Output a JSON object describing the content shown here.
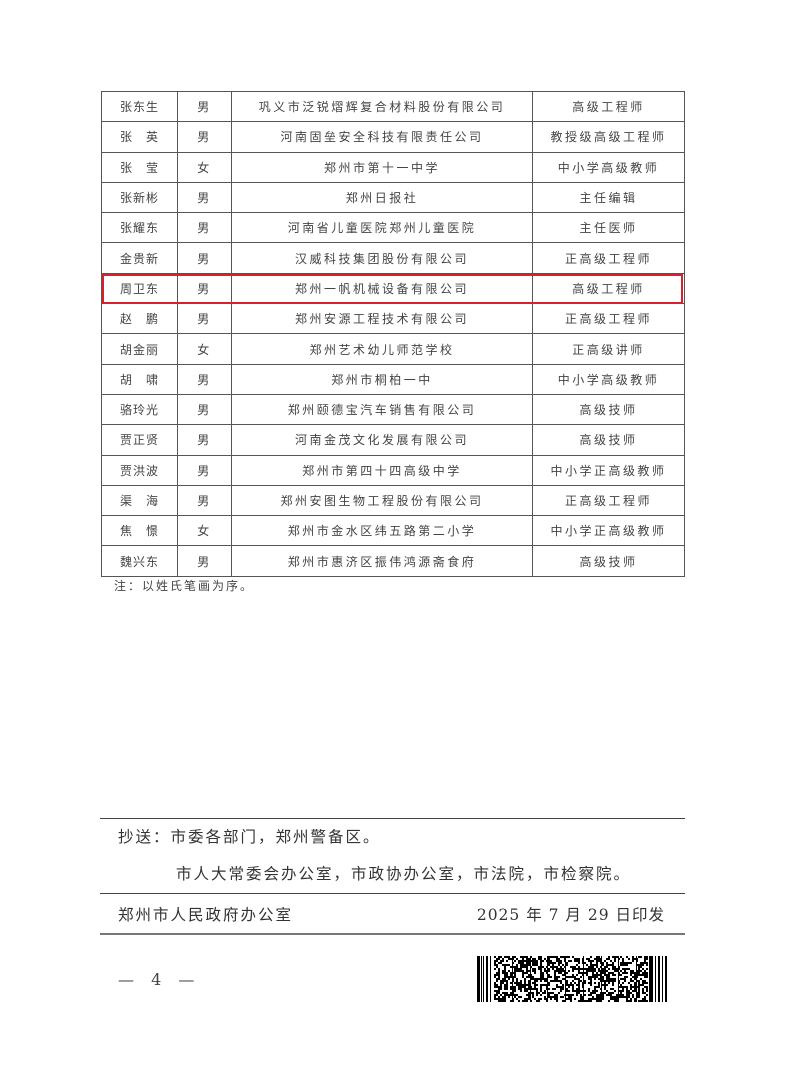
{
  "table": {
    "rows": [
      {
        "name": "张东生",
        "gender": "男",
        "org": "巩义市泛锐熠辉复合材料股份有限公司",
        "title": "高级工程师"
      },
      {
        "name": "张　英",
        "gender": "男",
        "org": "河南固垒安全科技有限责任公司",
        "title": "教授级高级工程师"
      },
      {
        "name": "张　莹",
        "gender": "女",
        "org": "郑州市第十一中学",
        "title": "中小学高级教师"
      },
      {
        "name": "张新彬",
        "gender": "男",
        "org": "郑州日报社",
        "title": "主任编辑"
      },
      {
        "name": "张耀东",
        "gender": "男",
        "org": "河南省儿童医院郑州儿童医院",
        "title": "主任医师"
      },
      {
        "name": "金贵新",
        "gender": "男",
        "org": "汉威科技集团股份有限公司",
        "title": "正高级工程师"
      },
      {
        "name": "周卫东",
        "gender": "男",
        "org": "郑州一帆机械设备有限公司",
        "title": "高级工程师",
        "highlighted": true
      },
      {
        "name": "赵　鹏",
        "gender": "男",
        "org": "郑州安源工程技术有限公司",
        "title": "正高级工程师"
      },
      {
        "name": "胡金丽",
        "gender": "女",
        "org": "郑州艺术幼儿师范学校",
        "title": "正高级讲师"
      },
      {
        "name": "胡　啸",
        "gender": "男",
        "org": "郑州市桐柏一中",
        "title": "中小学高级教师"
      },
      {
        "name": "骆玲光",
        "gender": "男",
        "org": "郑州颐德宝汽车销售有限公司",
        "title": "高级技师"
      },
      {
        "name": "贾正贤",
        "gender": "男",
        "org": "河南金茂文化发展有限公司",
        "title": "高级技师"
      },
      {
        "name": "贾洪波",
        "gender": "男",
        "org": "郑州市第四十四高级中学",
        "title": "中小学正高级教师"
      },
      {
        "name": "渠　海",
        "gender": "男",
        "org": "郑州安图生物工程股份有限公司",
        "title": "正高级工程师"
      },
      {
        "name": "焦　憬",
        "gender": "女",
        "org": "郑州市金水区纬五路第二小学",
        "title": "中小学正高级教师"
      },
      {
        "name": "魏兴东",
        "gender": "男",
        "org": "郑州市惠济区振伟鸿源斋食府",
        "title": "高级技师"
      }
    ],
    "highlight_color": "#d8202e"
  },
  "note": "注：以姓氏笔画为序。",
  "footer": {
    "cc_line1": "抄送：市委各部门，郑州警备区。",
    "cc_line2": "市人大常委会办公室，市政协办公室，市法院，市检察院。",
    "issuer": "郑州市人民政府办公室",
    "issue_date": "2025 年 7 月 29 日印发"
  },
  "page_number": "— 4 —",
  "barcode_icon": "pdf417-barcode"
}
